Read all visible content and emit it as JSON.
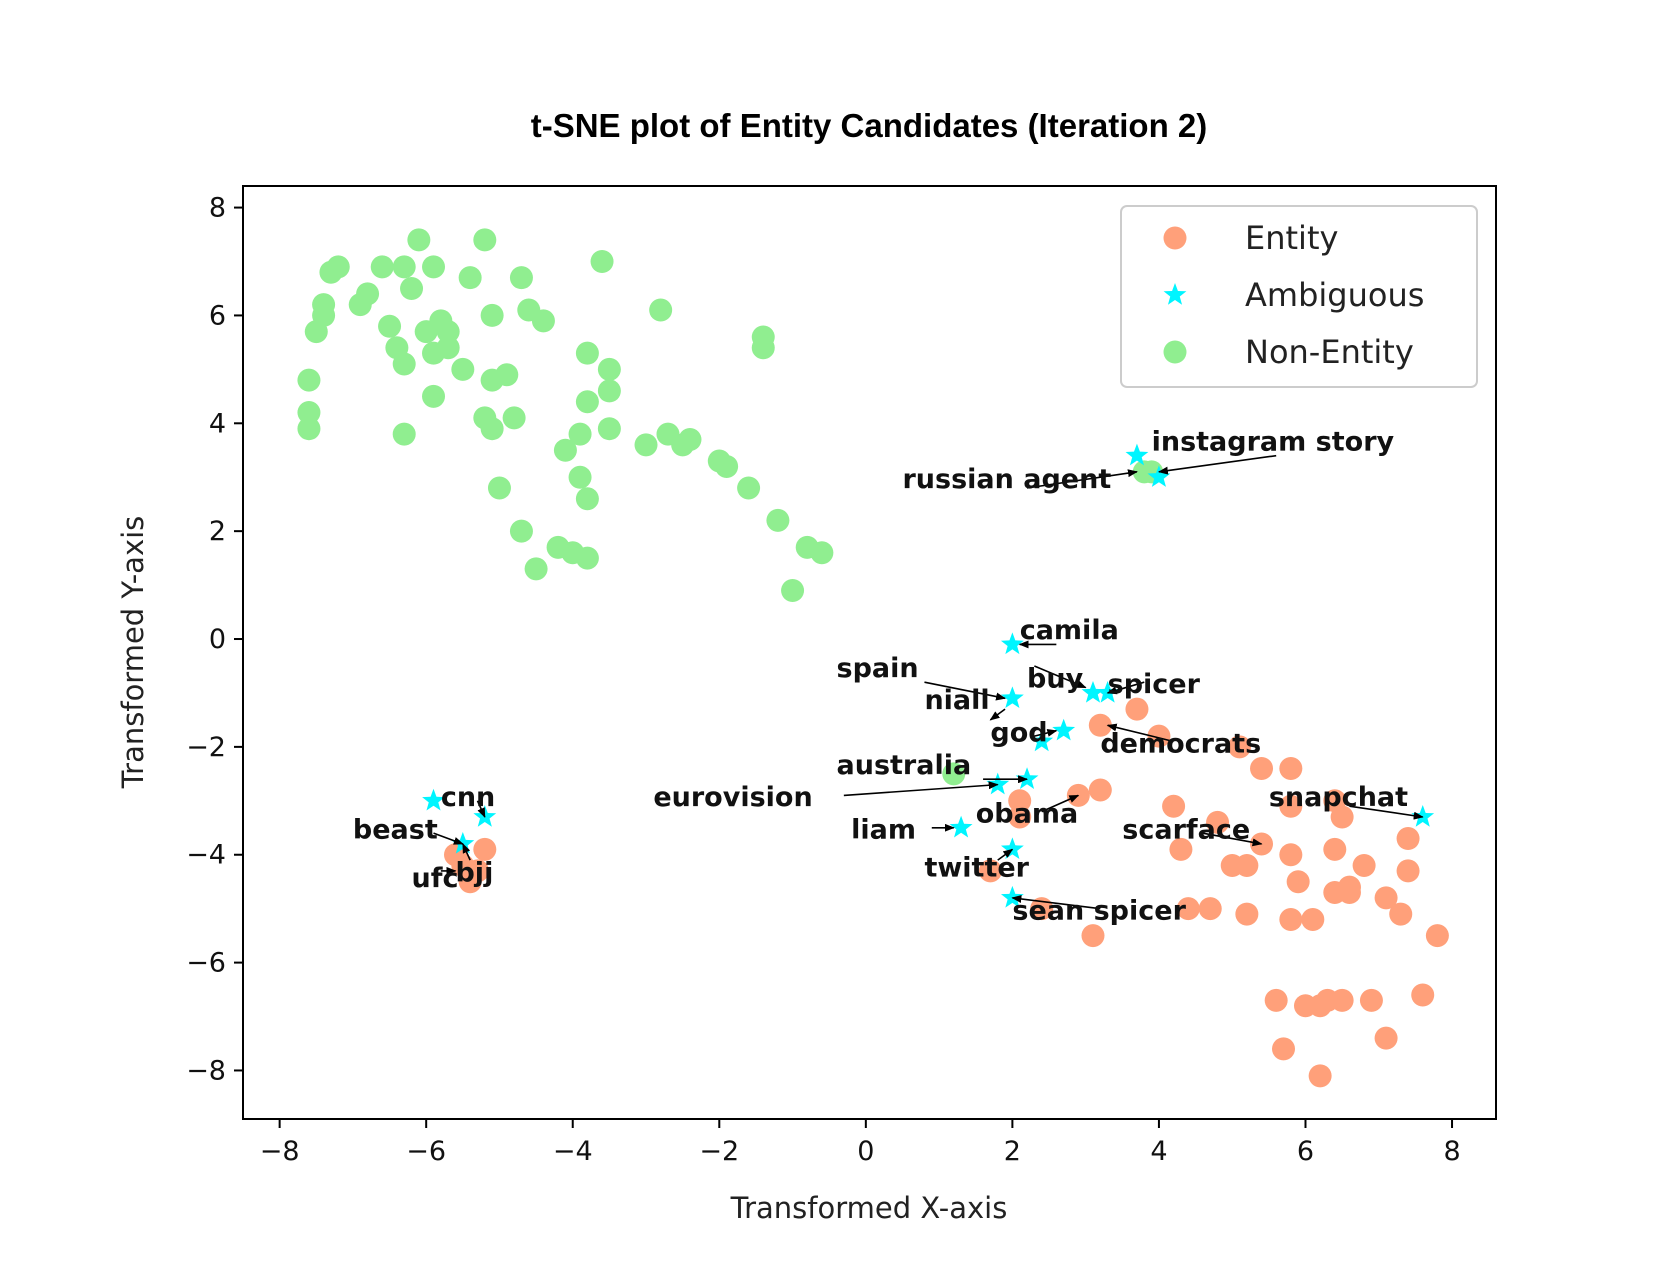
{
  "chart_data": {
    "type": "scatter",
    "title": "t-SNE  plot of Entity Candidates (Iteration 2)",
    "xlabel": "Transformed X-axis",
    "ylabel": "Transformed Y-axis",
    "xlim": [
      -8.5,
      8.6
    ],
    "ylim": [
      -8.9,
      8.4
    ],
    "xticks": [
      -8,
      -6,
      -4,
      -2,
      0,
      2,
      4,
      6,
      8
    ],
    "yticks": [
      -8,
      -6,
      -4,
      -2,
      0,
      2,
      4,
      6,
      8
    ],
    "xtick_labels": [
      "−8",
      "−6",
      "−4",
      "−2",
      "0",
      "2",
      "4",
      "6",
      "8"
    ],
    "ytick_labels": [
      "−8",
      "−6",
      "−4",
      "−2",
      "0",
      "2",
      "4",
      "6",
      "8"
    ],
    "grid": false,
    "legend_position": "upper right",
    "series": [
      {
        "name": "Entity",
        "color": "#FFA07A",
        "marker": "circle",
        "points": [
          [
            -5.2,
            -3.9
          ],
          [
            -5.5,
            -4.2
          ],
          [
            -5.4,
            -4.5
          ],
          [
            -5.3,
            -4.3
          ],
          [
            -5.6,
            -4.0
          ],
          [
            1.7,
            -4.3
          ],
          [
            2.1,
            -3.0
          ],
          [
            2.1,
            -3.3
          ],
          [
            2.4,
            -5.0
          ],
          [
            2.9,
            -2.9
          ],
          [
            3.1,
            -5.5
          ],
          [
            3.2,
            -2.8
          ],
          [
            3.2,
            -1.6
          ],
          [
            3.7,
            -1.3
          ],
          [
            4.0,
            -1.8
          ],
          [
            4.2,
            -3.1
          ],
          [
            4.3,
            -3.9
          ],
          [
            4.4,
            -5.0
          ],
          [
            4.7,
            -5.0
          ],
          [
            4.8,
            -3.4
          ],
          [
            5.0,
            -4.2
          ],
          [
            5.1,
            -2.0
          ],
          [
            5.2,
            -5.1
          ],
          [
            5.2,
            -4.2
          ],
          [
            5.4,
            -3.8
          ],
          [
            5.4,
            -2.4
          ],
          [
            5.8,
            -2.4
          ],
          [
            5.8,
            -3.1
          ],
          [
            5.8,
            -4.0
          ],
          [
            5.8,
            -5.2
          ],
          [
            5.9,
            -4.5
          ],
          [
            6.1,
            -5.2
          ],
          [
            6.4,
            -3.0
          ],
          [
            6.4,
            -3.9
          ],
          [
            6.4,
            -4.7
          ],
          [
            6.5,
            -3.3
          ],
          [
            6.6,
            -4.6
          ],
          [
            6.6,
            -4.7
          ],
          [
            6.8,
            -4.2
          ],
          [
            7.1,
            -4.8
          ],
          [
            7.3,
            -5.1
          ],
          [
            7.4,
            -3.7
          ],
          [
            7.4,
            -4.3
          ],
          [
            7.6,
            -6.6
          ],
          [
            7.8,
            -5.5
          ],
          [
            5.6,
            -6.7
          ],
          [
            5.7,
            -7.6
          ],
          [
            6.0,
            -6.8
          ],
          [
            6.2,
            -6.8
          ],
          [
            6.3,
            -6.7
          ],
          [
            6.5,
            -6.7
          ],
          [
            6.9,
            -6.7
          ],
          [
            7.1,
            -7.4
          ],
          [
            6.2,
            -8.1
          ]
        ]
      },
      {
        "name": "Ambiguous",
        "color": "#00F5FF",
        "marker": "star",
        "points": [
          [
            -5.9,
            -3.0
          ],
          [
            -5.2,
            -3.3
          ],
          [
            -5.5,
            -3.8
          ],
          [
            1.3,
            -3.5
          ],
          [
            1.8,
            -2.7
          ],
          [
            2.0,
            -1.1
          ],
          [
            2.0,
            -0.1
          ],
          [
            2.0,
            -3.9
          ],
          [
            2.0,
            -4.8
          ],
          [
            2.2,
            -2.6
          ],
          [
            2.4,
            -1.9
          ],
          [
            2.7,
            -1.7
          ],
          [
            3.1,
            -1.0
          ],
          [
            3.3,
            -1.0
          ],
          [
            3.7,
            3.4
          ],
          [
            4.0,
            3.0
          ],
          [
            7.6,
            -3.3
          ]
        ]
      },
      {
        "name": "Non-Entity",
        "color": "#90EE90",
        "marker": "circle",
        "points": [
          [
            -7.6,
            4.8
          ],
          [
            -7.6,
            4.2
          ],
          [
            -7.6,
            3.9
          ],
          [
            -7.5,
            5.7
          ],
          [
            -7.4,
            6.0
          ],
          [
            -7.4,
            6.2
          ],
          [
            -7.3,
            6.8
          ],
          [
            -7.2,
            6.9
          ],
          [
            -6.9,
            6.2
          ],
          [
            -6.8,
            6.4
          ],
          [
            -6.6,
            6.9
          ],
          [
            -6.5,
            5.8
          ],
          [
            -6.4,
            5.4
          ],
          [
            -6.3,
            5.1
          ],
          [
            -6.3,
            6.9
          ],
          [
            -6.2,
            6.5
          ],
          [
            -6.1,
            7.4
          ],
          [
            -6.0,
            5.7
          ],
          [
            -5.9,
            6.9
          ],
          [
            -5.9,
            5.3
          ],
          [
            -5.8,
            5.9
          ],
          [
            -5.7,
            5.7
          ],
          [
            -5.7,
            5.4
          ],
          [
            -5.9,
            4.5
          ],
          [
            -6.3,
            3.8
          ],
          [
            -5.5,
            5.0
          ],
          [
            -5.4,
            6.7
          ],
          [
            -5.2,
            7.4
          ],
          [
            -5.2,
            4.1
          ],
          [
            -5.1,
            6.0
          ],
          [
            -5.1,
            4.8
          ],
          [
            -5.1,
            3.9
          ],
          [
            -4.9,
            4.9
          ],
          [
            -5.0,
            2.8
          ],
          [
            -4.8,
            4.1
          ],
          [
            -4.7,
            6.7
          ],
          [
            -4.6,
            6.1
          ],
          [
            -4.4,
            5.9
          ],
          [
            -4.7,
            2.0
          ],
          [
            -4.5,
            1.3
          ],
          [
            -4.2,
            1.7
          ],
          [
            -4.1,
            3.5
          ],
          [
            -4.0,
            1.6
          ],
          [
            -3.8,
            1.5
          ],
          [
            -3.9,
            3.8
          ],
          [
            -3.9,
            3.0
          ],
          [
            -3.8,
            2.6
          ],
          [
            -3.8,
            4.4
          ],
          [
            -3.8,
            5.3
          ],
          [
            -3.6,
            7.0
          ],
          [
            -3.5,
            5.0
          ],
          [
            -3.5,
            4.6
          ],
          [
            -3.5,
            3.9
          ],
          [
            -3.0,
            3.6
          ],
          [
            -2.8,
            6.1
          ],
          [
            -2.7,
            3.8
          ],
          [
            -2.5,
            3.6
          ],
          [
            -2.4,
            3.7
          ],
          [
            -2.0,
            3.3
          ],
          [
            -1.9,
            3.2
          ],
          [
            -1.6,
            2.8
          ],
          [
            -1.4,
            5.6
          ],
          [
            -1.4,
            5.4
          ],
          [
            -1.2,
            2.2
          ],
          [
            -1.0,
            0.9
          ],
          [
            -0.8,
            1.7
          ],
          [
            -0.6,
            1.6
          ],
          [
            1.2,
            -2.5
          ],
          [
            3.8,
            3.1
          ],
          [
            3.9,
            3.1
          ]
        ]
      }
    ],
    "annotations": [
      {
        "label": "instagram story",
        "text_at": [
          3.9,
          3.5
        ],
        "arrow_from": [
          5.6,
          3.4
        ],
        "arrow_to": [
          4.0,
          3.1
        ]
      },
      {
        "label": "russian agent",
        "text_at": [
          0.5,
          2.8
        ],
        "arrow_from": [
          2.2,
          2.8
        ],
        "arrow_to": [
          3.7,
          3.1
        ]
      },
      {
        "label": "camila",
        "text_at": [
          2.1,
          0.0
        ],
        "arrow_from": [
          2.6,
          -0.1
        ],
        "arrow_to": [
          2.1,
          -0.1
        ]
      },
      {
        "label": "spain",
        "text_at": [
          -0.4,
          -0.7
        ],
        "arrow_from": [
          0.8,
          -0.8
        ],
        "arrow_to": [
          1.9,
          -1.1
        ]
      },
      {
        "label": "buy",
        "text_at": [
          2.2,
          -0.9
        ],
        "arrow_from": [
          2.3,
          -0.5
        ],
        "arrow_to": [
          3.0,
          -0.9
        ]
      },
      {
        "label": "spicer",
        "text_at": [
          3.3,
          -1.0
        ],
        "arrow_from": [
          3.8,
          -0.8
        ],
        "arrow_to": [
          3.3,
          -1.0
        ]
      },
      {
        "label": "niall",
        "text_at": [
          0.8,
          -1.3
        ],
        "arrow_from": [
          1.9,
          -1.3
        ],
        "arrow_to": [
          1.7,
          -1.5
        ]
      },
      {
        "label": "god",
        "text_at": [
          1.7,
          -1.9
        ],
        "arrow_from": [
          2.3,
          -1.8
        ],
        "arrow_to": [
          2.6,
          -1.7
        ]
      },
      {
        "label": "democrats",
        "text_at": [
          3.2,
          -2.1
        ],
        "arrow_from": [
          4.2,
          -1.9
        ],
        "arrow_to": [
          3.3,
          -1.6
        ]
      },
      {
        "label": "australia",
        "text_at": [
          -0.4,
          -2.5
        ],
        "arrow_from": [
          1.6,
          -2.6
        ],
        "arrow_to": [
          2.2,
          -2.6
        ]
      },
      {
        "label": "eurovision",
        "text_at": [
          -2.9,
          -3.1
        ],
        "arrow_from": [
          -0.3,
          -2.9
        ],
        "arrow_to": [
          1.8,
          -2.7
        ]
      },
      {
        "label": "obama",
        "text_at": [
          1.5,
          -3.4
        ],
        "arrow_from": [
          2.4,
          -3.2
        ],
        "arrow_to": [
          2.9,
          -2.9
        ]
      },
      {
        "label": "liam",
        "text_at": [
          -0.2,
          -3.7
        ],
        "arrow_from": [
          0.9,
          -3.5
        ],
        "arrow_to": [
          1.2,
          -3.5
        ]
      },
      {
        "label": "twitter",
        "text_at": [
          0.8,
          -4.4
        ],
        "arrow_from": [
          1.8,
          -4.1
        ],
        "arrow_to": [
          2.0,
          -3.9
        ]
      },
      {
        "label": "sean spicer",
        "text_at": [
          2.0,
          -5.2
        ],
        "arrow_from": [
          3.2,
          -5.0
        ],
        "arrow_to": [
          2.0,
          -4.8
        ]
      },
      {
        "label": "snapchat",
        "text_at": [
          5.5,
          -3.1
        ],
        "arrow_from": [
          6.6,
          -3.1
        ],
        "arrow_to": [
          7.6,
          -3.3
        ]
      },
      {
        "label": "scarface",
        "text_at": [
          3.5,
          -3.7
        ],
        "arrow_from": [
          4.6,
          -3.6
        ],
        "arrow_to": [
          5.4,
          -3.8
        ]
      },
      {
        "label": "cnn",
        "text_at": [
          -5.8,
          -3.1
        ],
        "arrow_from": [
          -5.3,
          -3.0
        ],
        "arrow_to": [
          -5.2,
          -3.3
        ]
      },
      {
        "label": "beast",
        "text_at": [
          -7.0,
          -3.7
        ],
        "arrow_from": [
          -5.9,
          -3.6
        ],
        "arrow_to": [
          -5.5,
          -3.8
        ]
      },
      {
        "label": "bjj",
        "text_at": [
          -5.6,
          -4.5
        ],
        "arrow_from": [
          -5.4,
          -4.1
        ],
        "arrow_to": [
          -5.5,
          -3.8
        ]
      },
      {
        "label": "ufc",
        "text_at": [
          -6.2,
          -4.6
        ],
        "arrow_from": [
          -5.8,
          -4.3
        ],
        "arrow_to": [
          -5.6,
          -4.3
        ]
      }
    ]
  }
}
